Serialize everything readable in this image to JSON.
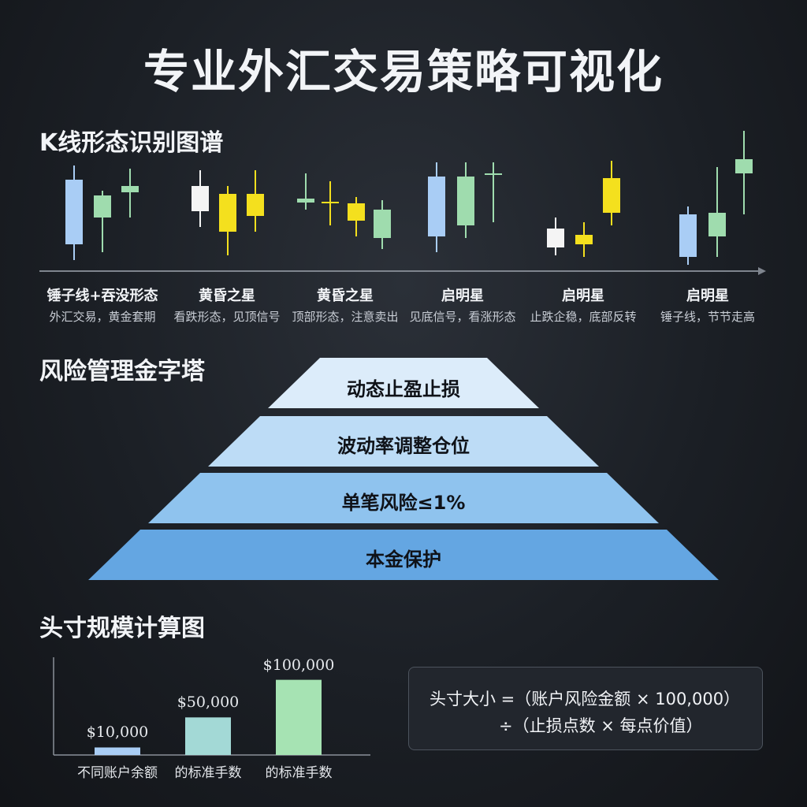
{
  "title": "专业外汇交易策略可视化",
  "sections": {
    "candles": "K线形态识别图谱",
    "risk": "风险管理金字塔",
    "position": "头寸规模计算图"
  },
  "candle_groups": [
    {
      "name": "锤子线+吞没形态",
      "sub": "外汇交易，黄金套期"
    },
    {
      "name": "黄昏之星",
      "sub": "看跌形态，见顶信号"
    },
    {
      "name": "黄昏之星",
      "sub": "顶部形态，注意卖出"
    },
    {
      "name": "启明星",
      "sub": "见底信号，看涨形态"
    },
    {
      "name": "启明星",
      "sub": "止跌企稳，底部反转"
    },
    {
      "name": "启明星",
      "sub": "锤子线，节节走高"
    }
  ],
  "risk_pyramid": [
    "动态止盈止损",
    "波动率调整仓位",
    "单笔风险≤1%",
    "本金保护"
  ],
  "formula": {
    "line1": "头寸大小 =（账户风险金额 × 100,000）",
    "line2": "÷（止损点数 × 每点价值）"
  },
  "colors": {
    "blue": "#a9cdf5",
    "green": "#9fdcae",
    "white": "#f4f4f4",
    "yellow": "#f4e01e",
    "pyramid_top": "#dcecfa",
    "pyramid_bottom": "#64a6e2"
  },
  "chart_data": [
    {
      "type": "bar",
      "title": "头寸规模计算图",
      "categories": [
        "不同账户余额",
        "的标准手数",
        "的标准手数"
      ],
      "values": [
        10000,
        50000,
        100000
      ],
      "value_labels": [
        "$10,000",
        "$50,000",
        "$100,000"
      ],
      "bar_colors": [
        "#a9cdf5",
        "#a3d9d6",
        "#a6e3b3"
      ],
      "ylim": [
        0,
        130000
      ],
      "grid": false
    }
  ]
}
